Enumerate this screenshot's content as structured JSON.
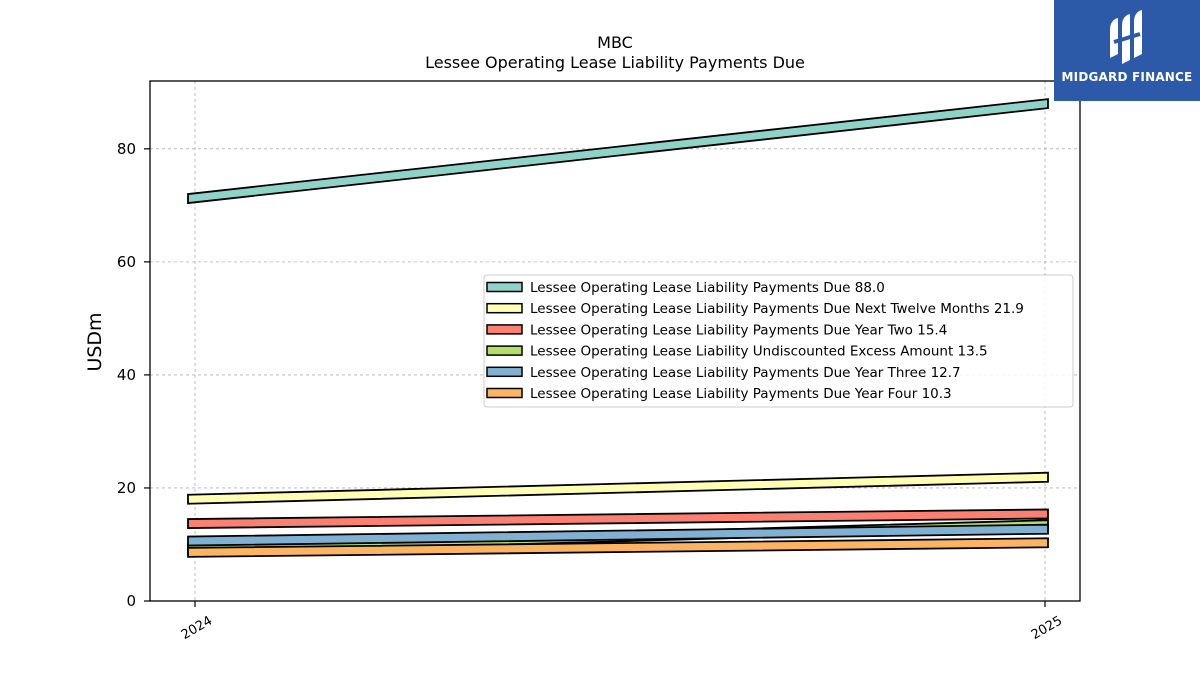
{
  "brand": {
    "name": "MIDGARD FINANCE",
    "color": "#2c5aa8"
  },
  "chart_data": {
    "type": "line",
    "title": "MBC",
    "subtitle": "Lessee Operating Lease Liability Payments Due",
    "xlabel": "",
    "ylabel": "USDm",
    "x": [
      "2024",
      "2025"
    ],
    "ylim": [
      0,
      92
    ],
    "yticks": [
      0,
      20,
      40,
      60,
      80
    ],
    "grid": true,
    "legend_placement": "center-right",
    "series": [
      {
        "name": "Lessee Operating Lease Liability Payments Due",
        "legend_value": "88.0",
        "values": [
          71.2,
          88.0
        ],
        "color": "#8dd3c7"
      },
      {
        "name": "Lessee Operating Lease Liability Payments Due Next Twelve Months",
        "legend_value": "21.9",
        "values": [
          18.0,
          21.9
        ],
        "color": "#ffffb3"
      },
      {
        "name": "Lessee Operating Lease Liability Payments Due Year Two",
        "legend_value": "15.4",
        "values": [
          13.7,
          15.4
        ],
        "color": "#fb8072"
      },
      {
        "name": "Lessee Operating Lease Liability Undiscounted Excess Amount",
        "legend_value": "13.5",
        "values": [
          9.2,
          13.5
        ],
        "color": "#b3de69"
      },
      {
        "name": "Lessee Operating Lease Liability Payments Due Year Three",
        "legend_value": "12.7",
        "values": [
          10.6,
          12.7
        ],
        "color": "#80b1d3"
      },
      {
        "name": "Lessee Operating Lease Liability Payments Due Year Four",
        "legend_value": "10.3",
        "values": [
          8.6,
          10.3
        ],
        "color": "#fdb462"
      }
    ]
  }
}
